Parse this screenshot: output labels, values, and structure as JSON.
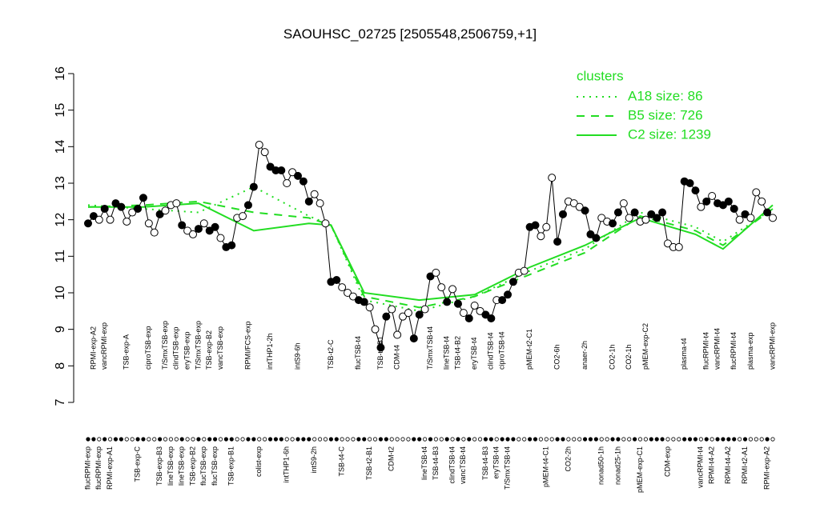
{
  "chart_data": {
    "type": "line",
    "title": "SAOUHSC_02725 [2505548,2506759,+1]",
    "categories": [
      "flucRPMI-exp",
      "RPMI-exp-A2",
      "flucRPMI-exp",
      "vancRPMI-exp",
      "RPMI-exp-A1",
      null,
      null,
      "TSB-exp-A",
      null,
      "TSB-exp-C",
      null,
      "ciproTSB-exp",
      null,
      "TSB-exp-B3",
      "T/SmxTSB-exp",
      "lineTSB-exp",
      "clindTSB-exp",
      "lineTSB-exp",
      "eryTSB-exp",
      "TSB-exp-B2",
      "T/SmxTSB-exp",
      "flucTSB-exp",
      "TSB-exp-B2",
      "flucTSB-exp",
      "vancTSB-exp",
      null,
      "TSB-exp-B1",
      null,
      null,
      "RPMI/FCS-exp",
      null,
      "colist-exp",
      null,
      "intTHP1-2h",
      null,
      null,
      "intTHP1-6h",
      null,
      "intS9-6h",
      null,
      null,
      "intS9-2h",
      null,
      null,
      "TSB-t2-C",
      null,
      "TSB-t4-C",
      null,
      null,
      "flucTSB-t4",
      null,
      "TSB-t2-B1",
      null,
      "TSB-t4-B1",
      null,
      "CDM-t2",
      "CDM-t4",
      null,
      null,
      null,
      null,
      "lineTSB-t4",
      "T/SmxTSB-t4",
      "TSB-t4-B3",
      null,
      "lineTSB-t4",
      "clindTSB-t4",
      "TSB-t4-B2",
      "vancTSB-t4",
      null,
      "eryTSB-t4",
      null,
      "TSB-t4-B3",
      "clindTSB-t4",
      "eryTSB-t4",
      "ciproTSB-t4",
      "T/SmxTSB-t4",
      null,
      null,
      null,
      "pMEM-t2-C1",
      null,
      null,
      "pMEM-t4-C1",
      null,
      "CO2-6h",
      null,
      "CO2-2h",
      null,
      null,
      "anaer-2h",
      null,
      null,
      "nonad50-1h",
      null,
      "CO2-1h",
      "nonad25-1h",
      null,
      "CO2-1h",
      null,
      "pMEM-exp-C1",
      "pMEM-exp-C2",
      null,
      null,
      null,
      "CDM-exp",
      null,
      null,
      "plasma-t4",
      null,
      null,
      "vancRPMI-t4",
      "flucRPMI-t4",
      "RPMI-t4-A2",
      "vancRPMI-t4",
      null,
      "RPMI-t4-A2",
      "flucRPMI-t4",
      null,
      "RPMI-t2-A1",
      "plasma-exp",
      null,
      null,
      "RPMI-exp-A2",
      "vancRPMI-exp"
    ],
    "values": [
      11.9,
      12.1,
      12.0,
      12.3,
      12.0,
      12.45,
      12.35,
      11.95,
      12.2,
      12.3,
      12.6,
      11.9,
      11.65,
      12.15,
      12.25,
      12.4,
      12.45,
      11.85,
      11.7,
      11.6,
      11.75,
      11.9,
      11.7,
      11.8,
      11.5,
      11.25,
      11.3,
      12.05,
      12.1,
      12.4,
      12.9,
      14.05,
      13.85,
      13.45,
      13.35,
      13.35,
      13.0,
      13.3,
      13.2,
      13.05,
      12.5,
      12.7,
      12.45,
      11.9,
      10.3,
      10.35,
      10.15,
      10.0,
      9.9,
      9.8,
      9.75,
      9.6,
      9.0,
      8.5,
      9.35,
      9.55,
      8.85,
      9.35,
      9.45,
      8.75,
      9.4,
      9.55,
      10.45,
      10.55,
      10.15,
      9.75,
      10.1,
      9.7,
      9.45,
      9.3,
      9.65,
      9.5,
      9.4,
      9.3,
      9.8,
      9.8,
      9.95,
      10.3,
      10.55,
      10.6,
      11.8,
      11.85,
      11.55,
      11.8,
      13.15,
      11.4,
      12.15,
      12.5,
      12.45,
      12.35,
      12.25,
      11.6,
      11.5,
      12.05,
      11.95,
      11.9,
      12.2,
      12.45,
      12.05,
      12.2,
      11.95,
      12.0,
      12.15,
      12.05,
      12.2,
      11.35,
      11.25,
      11.25,
      13.05,
      13.0,
      12.8,
      12.35,
      12.5,
      12.65,
      12.45,
      12.4,
      12.5,
      12.3,
      12.0,
      12.15,
      12.05,
      12.75,
      12.5,
      12.2,
      12.05
    ],
    "point_filled": [
      true,
      true,
      false,
      true,
      false,
      true,
      true,
      false,
      false,
      true,
      true,
      false,
      false,
      true,
      false,
      false,
      false,
      true,
      false,
      false,
      true,
      false,
      true,
      true,
      false,
      true,
      true,
      false,
      false,
      true,
      true,
      false,
      false,
      true,
      true,
      true,
      false,
      false,
      true,
      true,
      true,
      false,
      false,
      false,
      true,
      true,
      false,
      false,
      false,
      true,
      true,
      false,
      false,
      true,
      true,
      false,
      false,
      false,
      false,
      true,
      true,
      false,
      true,
      false,
      false,
      true,
      false,
      true,
      false,
      true,
      false,
      false,
      true,
      true,
      false,
      true,
      true,
      true,
      false,
      false,
      true,
      true,
      false,
      false,
      false,
      true,
      true,
      false,
      false,
      false,
      true,
      true,
      true,
      false,
      false,
      true,
      true,
      false,
      false,
      true,
      false,
      false,
      true,
      true,
      true,
      false,
      false,
      false,
      true,
      true,
      true,
      false,
      true,
      false,
      true,
      true,
      true,
      true,
      false,
      true,
      false,
      false,
      false,
      true,
      false
    ],
    "line_color": "#000000",
    "ylim": [
      7,
      16
    ],
    "yticks": [
      7,
      8,
      9,
      10,
      11,
      12,
      13,
      14,
      15,
      16
    ],
    "legend_title": "clusters",
    "legend_position": "top-right",
    "series": [
      {
        "name": "A18 size: 86",
        "color": "#22dd22",
        "style": "dotted",
        "x": [
          0,
          10,
          20,
          30,
          40,
          44,
          50,
          60,
          70,
          80,
          90,
          100,
          110,
          115,
          124
        ],
        "values": [
          12.4,
          12.3,
          12.2,
          12.9,
          12.1,
          11.85,
          9.8,
          9.5,
          9.9,
          10.6,
          11.2,
          12.2,
          11.8,
          11.4,
          12.3
        ]
      },
      {
        "name": "B5 size: 726",
        "color": "#22dd22",
        "style": "dashed",
        "x": [
          0,
          10,
          20,
          30,
          40,
          44,
          50,
          60,
          70,
          80,
          90,
          100,
          110,
          115,
          124
        ],
        "values": [
          12.35,
          12.4,
          12.5,
          12.2,
          12.05,
          11.85,
          9.9,
          9.6,
          9.9,
          10.5,
          11.1,
          12.1,
          11.7,
          11.3,
          12.3
        ]
      },
      {
        "name": "C2 size: 1239",
        "color": "#22dd22",
        "style": "solid",
        "x": [
          0,
          10,
          20,
          30,
          40,
          44,
          50,
          60,
          70,
          80,
          90,
          100,
          110,
          115,
          124
        ],
        "values": [
          12.35,
          12.35,
          12.45,
          11.7,
          11.9,
          11.85,
          10.0,
          9.8,
          9.95,
          10.7,
          11.3,
          12.05,
          11.6,
          11.2,
          12.4
        ]
      }
    ]
  }
}
